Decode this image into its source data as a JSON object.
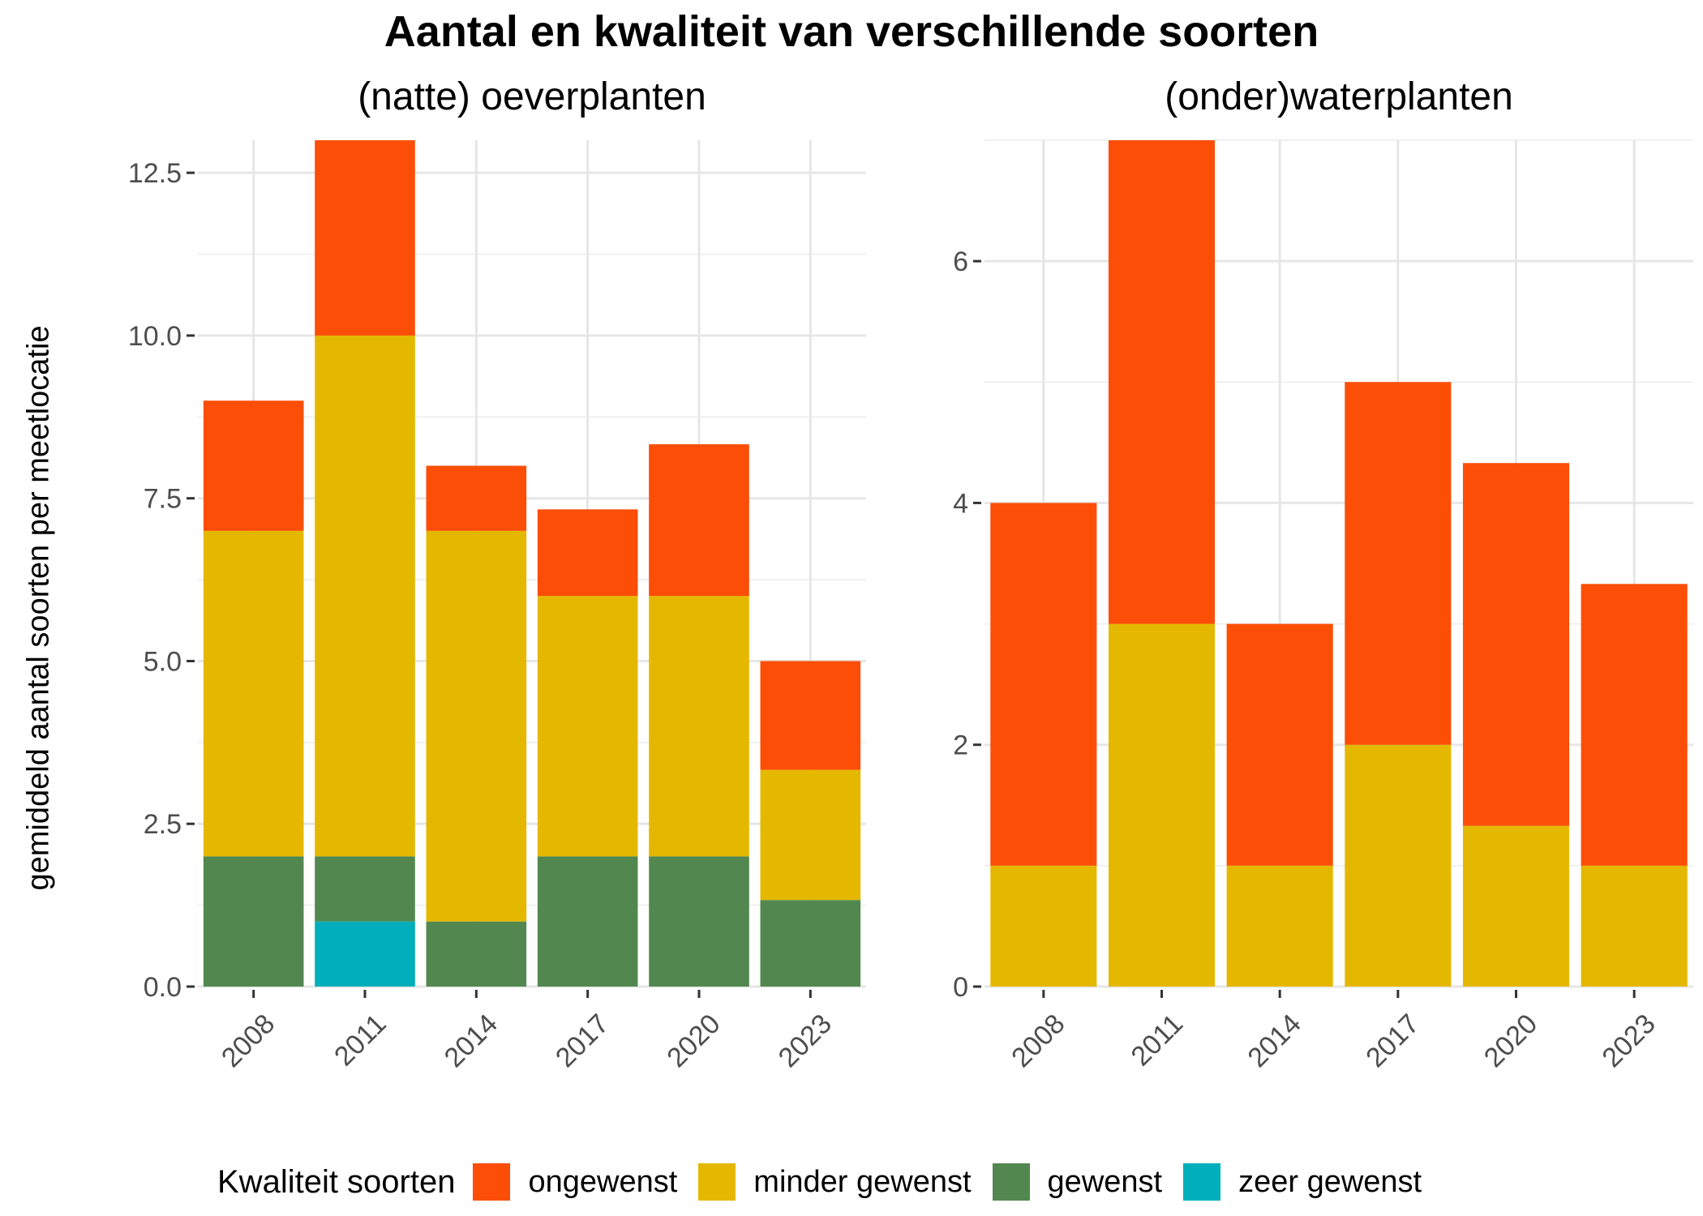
{
  "title": "Aantal en kwaliteit van verschillende soorten",
  "legend": {
    "title": "Kwaliteit soorten",
    "items": [
      {
        "label": "ongewenst",
        "color": "#fc4e07"
      },
      {
        "label": "minder gewenst",
        "color": "#e5b800"
      },
      {
        "label": "gewenst",
        "color": "#52884f"
      },
      {
        "label": "zeer gewenst",
        "color": "#00afbb"
      }
    ]
  },
  "chart_data": [
    {
      "type": "bar",
      "stacked": true,
      "title": "(natte) oeverplanten",
      "ylabel": "gemiddeld aantal soorten per meetlocatie",
      "categories": [
        "2008",
        "2011",
        "2014",
        "2017",
        "2020",
        "2023"
      ],
      "ylim": [
        0,
        13
      ],
      "yticks": [
        "0.0",
        "2.5",
        "5.0",
        "7.5",
        "10.0",
        "12.5"
      ],
      "grid": true,
      "series": [
        {
          "name": "zeer gewenst",
          "values": [
            0,
            1,
            0,
            0,
            0,
            0
          ]
        },
        {
          "name": "gewenst",
          "values": [
            2,
            1,
            1,
            2,
            2,
            1.33
          ]
        },
        {
          "name": "minder gewenst",
          "values": [
            5,
            8,
            6,
            4,
            4,
            2
          ]
        },
        {
          "name": "ongewenst",
          "values": [
            2,
            3,
            1,
            1.33,
            2.33,
            1.67
          ]
        }
      ]
    },
    {
      "type": "bar",
      "stacked": true,
      "title": "(onder)waterplanten",
      "categories": [
        "2008",
        "2011",
        "2014",
        "2017",
        "2020",
        "2023"
      ],
      "ylim": [
        0,
        7
      ],
      "yticks": [
        "0",
        "2",
        "4",
        "6"
      ],
      "grid": true,
      "series": [
        {
          "name": "minder gewenst",
          "values": [
            1,
            3,
            1,
            2,
            1.33,
            1
          ]
        },
        {
          "name": "ongewenst",
          "values": [
            3,
            4,
            2,
            3,
            3,
            2.33
          ]
        }
      ]
    }
  ]
}
